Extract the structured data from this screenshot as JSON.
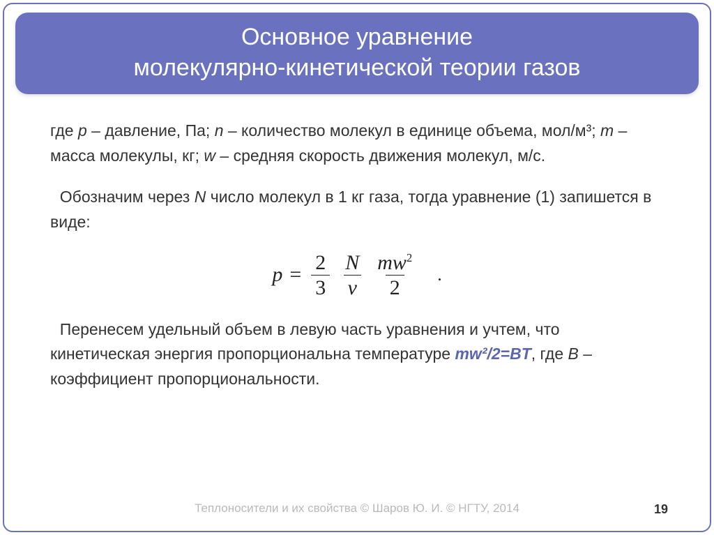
{
  "title": {
    "line1": "Основное уравнение",
    "line2": "молекулярно-кинетической теории газов"
  },
  "paragraph1": {
    "part1": "где ",
    "p": "p",
    "part2": " – давление, Па; ",
    "n": "n",
    "part3": " – количество молекул в единице объема, мол/м³; ",
    "m": "m",
    "part4": " – масса молекулы, кг; ",
    "w": "w",
    "part5": " – средняя скорость движения молекул, м/с."
  },
  "paragraph2": {
    "part1": "Обозначим через ",
    "N": "N",
    "part2": " число молекул в 1 кг газа, тогда уравнение (1) запишется в виде:"
  },
  "equation": {
    "lhs_var": "p",
    "equals": "=",
    "frac1_num": "2",
    "frac1_den": "3",
    "frac2_num": "N",
    "frac2_den": "v",
    "frac3_num_m": "m",
    "frac3_num_w": "w",
    "frac3_num_exp": "2",
    "frac3_den": "2",
    "period": "."
  },
  "paragraph3": {
    "part1": "Перенесем удельный объем в левую часть уравнения и учтем, что кинетическая энергия пропорциональна температуре ",
    "formula": "mw²/2=BT",
    "part2": ", где ",
    "B": "B",
    "part3": " – коэффициент пропорциональности."
  },
  "footer": "Теплоносители и их свойства © Шаров Ю. И. © НГТУ, 2014",
  "page_number": "19",
  "colors": {
    "accent": "#6a72c0",
    "text": "#333333",
    "footer": "#b9b9b9",
    "accent_formula": "#5b66b0"
  }
}
